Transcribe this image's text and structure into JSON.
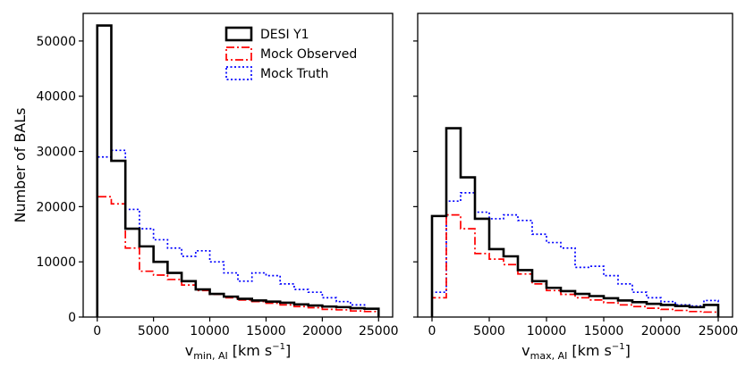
{
  "chart_data": [
    {
      "type": "histogram",
      "panel": "left",
      "xlabel_main": "v",
      "xlabel_sub": "min, AI",
      "xlabel_unit": "[km s",
      "xlabel_exp": "−1",
      "xlabel_close": "]",
      "ylabel": "Number of BALs",
      "xlim": [
        -1250,
        26250
      ],
      "ylim": [
        0,
        55000
      ],
      "xticks": [
        0,
        5000,
        10000,
        15000,
        20000,
        25000
      ],
      "yticks": [
        0,
        10000,
        20000,
        30000,
        40000,
        50000
      ],
      "bin_edges": [
        0,
        1250,
        2500,
        3750,
        5000,
        6250,
        7500,
        8750,
        10000,
        11250,
        12500,
        13750,
        15000,
        16250,
        17500,
        18750,
        20000,
        21250,
        22500,
        23750,
        25000
      ],
      "legend": {
        "position": "top-right",
        "entries": [
          "DESI Y1",
          "Mock Observed",
          "Mock Truth"
        ]
      },
      "series": [
        {
          "name": "DESI Y1",
          "color": "#000000",
          "style": "solid",
          "values": [
            52800,
            28300,
            16000,
            12800,
            10000,
            8000,
            6500,
            5000,
            4200,
            3700,
            3300,
            3000,
            2800,
            2600,
            2300,
            2100,
            1900,
            1800,
            1600,
            1500
          ]
        },
        {
          "name": "Mock Observed",
          "color": "#ff0000",
          "style": "dashdot",
          "values": [
            21800,
            20500,
            12500,
            8300,
            7600,
            6800,
            5800,
            4800,
            4100,
            3500,
            3100,
            2800,
            2500,
            2200,
            1900,
            1700,
            1400,
            1300,
            1100,
            1000
          ]
        },
        {
          "name": "Mock Truth",
          "color": "#0000ff",
          "style": "dotted",
          "values": [
            29000,
            30200,
            19500,
            16000,
            14000,
            12500,
            11000,
            12000,
            10000,
            8000,
            6500,
            8000,
            7500,
            6000,
            5000,
            4500,
            3500,
            2800,
            2200,
            1500
          ]
        }
      ]
    },
    {
      "type": "histogram",
      "panel": "right",
      "xlabel_main": "v",
      "xlabel_sub": "max, AI",
      "xlabel_unit": "[km s",
      "xlabel_exp": "−1",
      "xlabel_close": "]",
      "ylabel": "",
      "xlim": [
        -1250,
        26250
      ],
      "ylim": [
        0,
        55000
      ],
      "xticks": [
        0,
        5000,
        10000,
        15000,
        20000,
        25000
      ],
      "yticks": [
        0,
        10000,
        20000,
        30000,
        40000,
        50000
      ],
      "bin_edges": [
        0,
        1250,
        2500,
        3750,
        5000,
        6250,
        7500,
        8750,
        10000,
        11250,
        12500,
        13750,
        15000,
        16250,
        17500,
        18750,
        20000,
        21250,
        22500,
        23750,
        25000
      ],
      "series": [
        {
          "name": "DESI Y1",
          "color": "#000000",
          "style": "solid",
          "values": [
            18300,
            34200,
            25300,
            17800,
            12300,
            11000,
            8500,
            6500,
            5300,
            4700,
            4200,
            3800,
            3400,
            3000,
            2700,
            2400,
            2200,
            2000,
            1800,
            2200
          ]
        },
        {
          "name": "Mock Observed",
          "color": "#ff0000",
          "style": "dashdot",
          "values": [
            3500,
            18500,
            16000,
            11500,
            10500,
            9500,
            7800,
            6000,
            4800,
            4100,
            3500,
            3100,
            2600,
            2200,
            1900,
            1600,
            1400,
            1200,
            1000,
            900
          ]
        },
        {
          "name": "Mock Truth",
          "color": "#0000ff",
          "style": "dotted",
          "values": [
            4500,
            21000,
            22500,
            19000,
            17800,
            18500,
            17500,
            15000,
            13500,
            12500,
            9000,
            9200,
            7500,
            6000,
            4500,
            3500,
            2800,
            2200,
            2000,
            3000
          ]
        }
      ]
    }
  ]
}
